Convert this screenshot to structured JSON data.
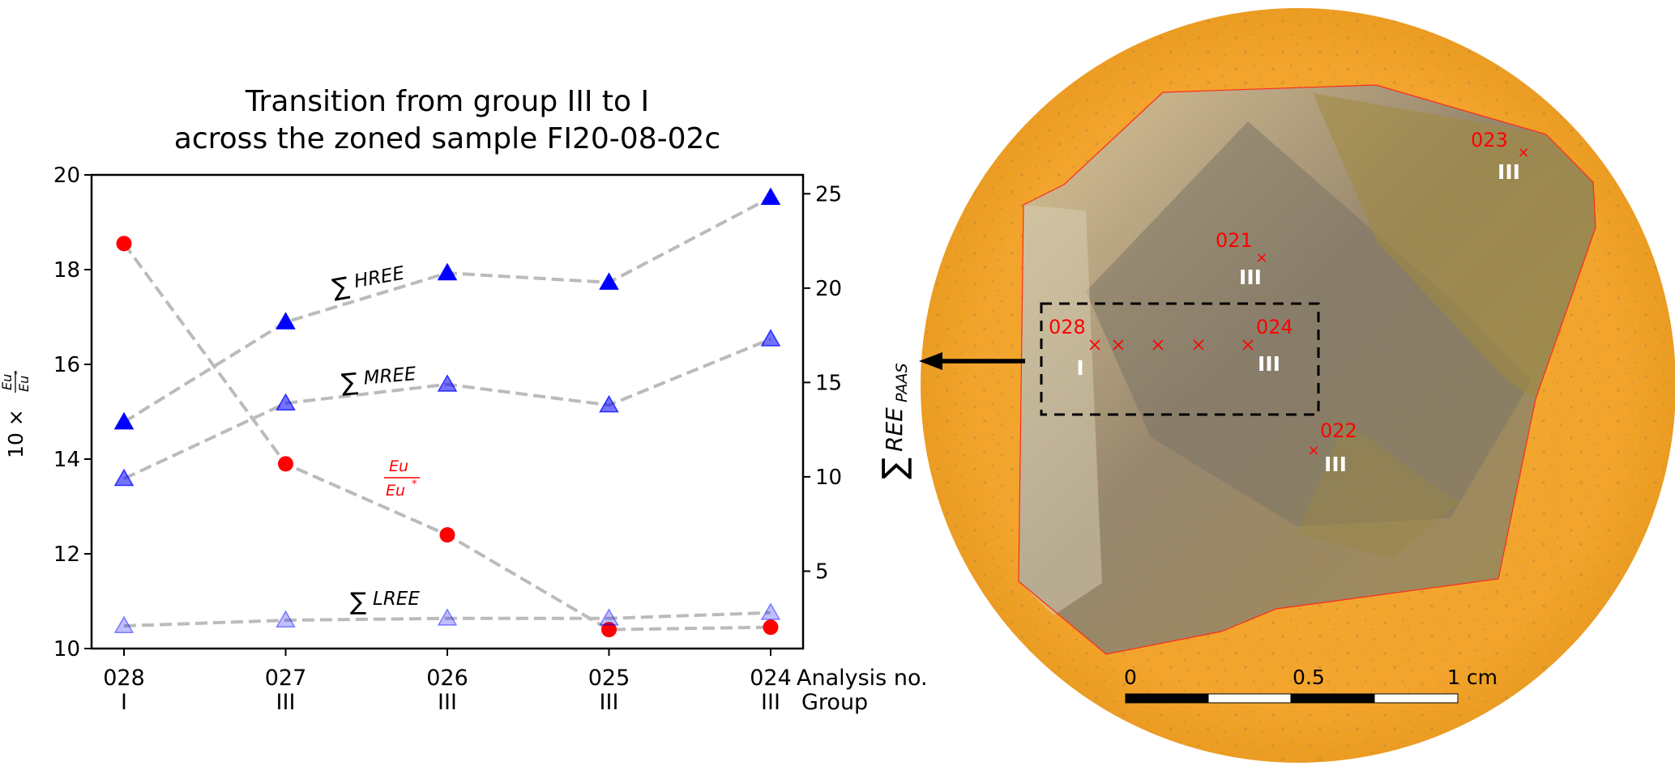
{
  "chart_data": {
    "type": "line",
    "title": [
      "Transition from group III to I",
      "across the zoned sample FI20-08-02c"
    ],
    "categories": [
      "028",
      "027",
      "026",
      "025",
      "024"
    ],
    "groups": [
      "I",
      "III",
      "III",
      "III",
      "III"
    ],
    "x_row_labels": [
      "Analysis no.",
      "Group"
    ],
    "left_axis": {
      "label": {
        "prefix": "10 × ",
        "num": "Eu",
        "den": "Eu",
        "sup": "*"
      },
      "ylim": [
        10,
        20
      ],
      "ticks": [
        "10",
        "12",
        "14",
        "16",
        "18",
        "20"
      ]
    },
    "right_axis": {
      "label": {
        "sigma": "∑",
        "main": "REE",
        "sub": "PAAS"
      },
      "ylim": [
        0.9,
        26.0
      ],
      "ticks": [
        "5",
        "10",
        "15",
        "20",
        "25"
      ]
    },
    "series": [
      {
        "name": "Eu/Eu*",
        "axis": "left",
        "marker": "circle",
        "color": "#ff0000",
        "alpha": 1.0,
        "values": [
          18.55,
          13.9,
          12.4,
          10.4,
          10.45
        ],
        "label": {
          "num": "Eu",
          "den": "Eu",
          "sup": "*"
        }
      },
      {
        "name": "∑HREE",
        "axis": "right",
        "marker": "triangle",
        "color": "#0000ff",
        "alpha": 1.0,
        "values": [
          12.9,
          18.2,
          20.8,
          20.3,
          24.8
        ],
        "label": {
          "sigma": "∑",
          "text": "HREE"
        }
      },
      {
        "name": "∑MREE",
        "axis": "right",
        "marker": "triangle",
        "color": "#0000ff",
        "alpha": 0.55,
        "values": [
          9.9,
          13.9,
          14.9,
          13.8,
          17.3
        ],
        "label": {
          "sigma": "∑",
          "text": "MREE"
        }
      },
      {
        "name": "∑LREE",
        "axis": "right",
        "marker": "triangle",
        "color": "#0000ff",
        "alpha": 0.25,
        "values": [
          2.1,
          2.4,
          2.5,
          2.5,
          2.8
        ],
        "label": {
          "sigma": "∑",
          "text": "LREE"
        }
      }
    ],
    "line_style": {
      "color": "#bbbbbb",
      "dash": "dashed"
    },
    "grid": false
  },
  "photo": {
    "background_color": "#f2a42c",
    "outline_color": "#ff2a1a",
    "points": [
      {
        "id": "021",
        "group": "III"
      },
      {
        "id": "022",
        "group": "III"
      },
      {
        "id": "023",
        "group": "III"
      },
      {
        "id": "028",
        "group": "I"
      },
      {
        "id": "024",
        "group": "III"
      }
    ],
    "transect_crosses": 5,
    "scale_bar": {
      "labels": [
        "0",
        "0.5",
        "1 cm"
      ]
    },
    "arrow": "left-arrow"
  }
}
